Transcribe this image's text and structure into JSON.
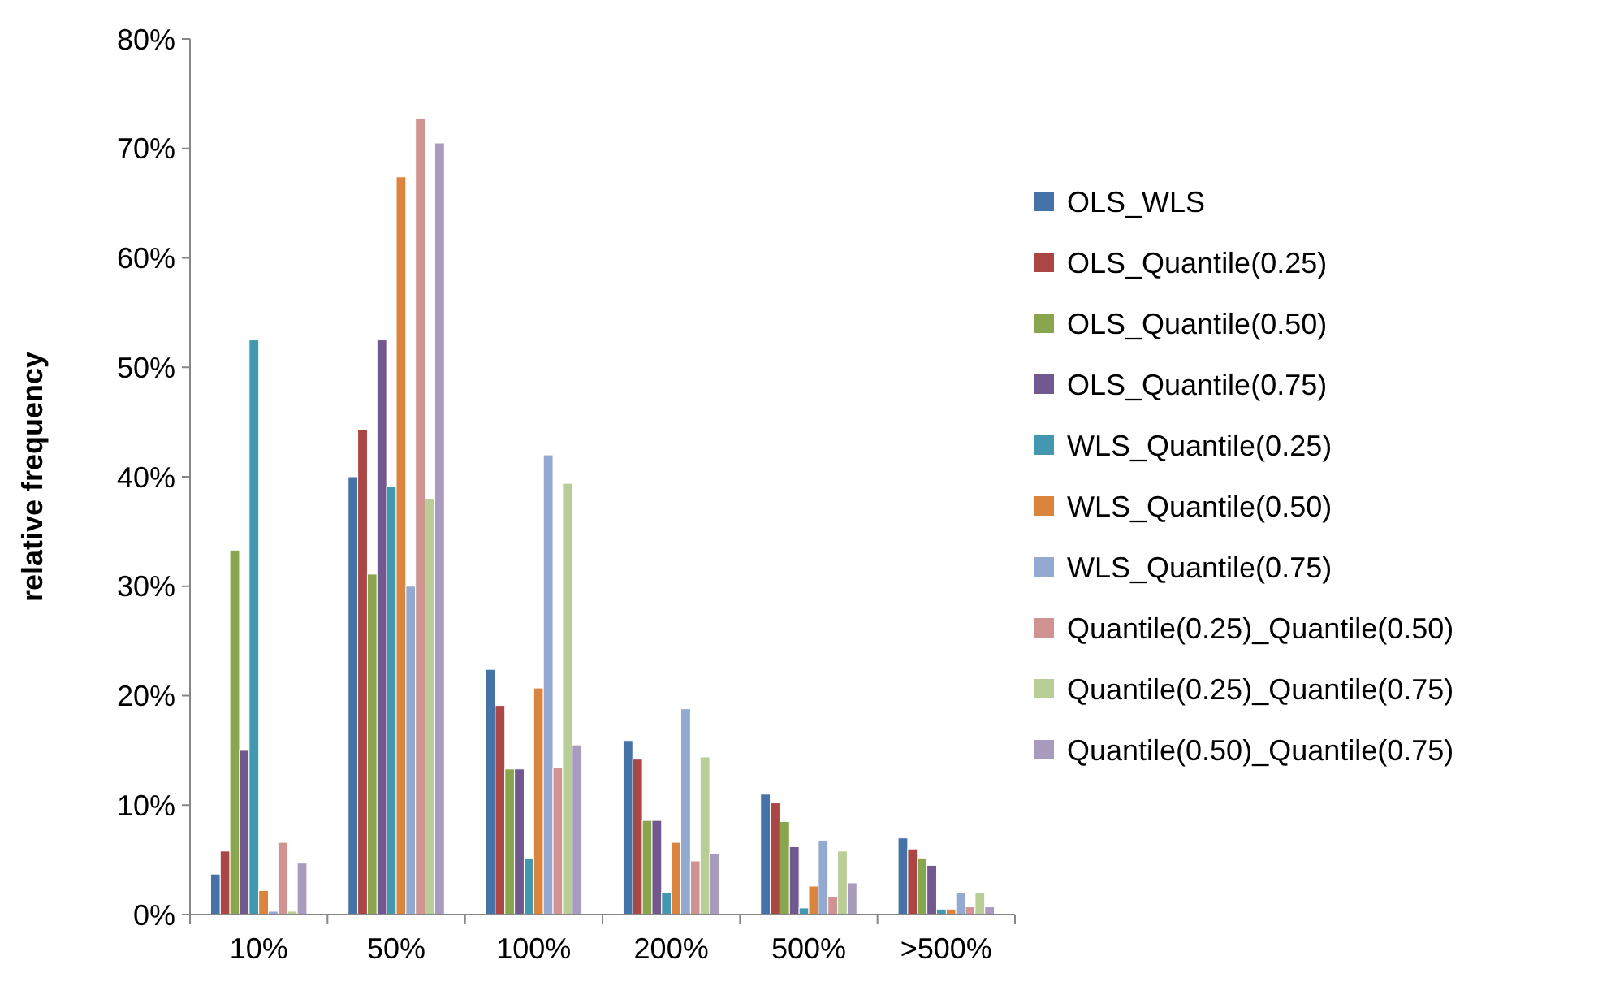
{
  "chart_data": {
    "type": "bar",
    "ylabel": "relative frequency",
    "categories": [
      "10%",
      "50%",
      "100%",
      "200%",
      "500%",
      ">500%"
    ],
    "ylim": [
      0,
      80
    ],
    "yticks": [
      {
        "value": 0,
        "label": "0%"
      },
      {
        "value": 10,
        "label": "10%"
      },
      {
        "value": 20,
        "label": "20%"
      },
      {
        "value": 30,
        "label": "30%"
      },
      {
        "value": 40,
        "label": "40%"
      },
      {
        "value": 50,
        "label": "50%"
      },
      {
        "value": 60,
        "label": "60%"
      },
      {
        "value": 70,
        "label": "70%"
      },
      {
        "value": 80,
        "label": "80%"
      }
    ],
    "grid": false,
    "legend": "right",
    "series": [
      {
        "name": "OLS_WLS",
        "color": "#4572a7",
        "values": [
          3.7,
          40,
          22.4,
          15.9,
          11,
          7
        ]
      },
      {
        "name": "OLS_Quantile(0.25)",
        "color": "#aa4643",
        "values": [
          5.8,
          44.3,
          19.1,
          14.2,
          10.2,
          6
        ]
      },
      {
        "name": "OLS_Quantile(0.50)",
        "color": "#89a54e",
        "values": [
          33.3,
          31.1,
          13.3,
          8.6,
          8.5,
          5.1
        ]
      },
      {
        "name": "OLS_Quantile(0.75)",
        "color": "#71588f",
        "values": [
          15,
          52.5,
          13.3,
          8.6,
          6.2,
          4.5
        ]
      },
      {
        "name": "WLS_Quantile(0.25)",
        "color": "#4198af",
        "values": [
          52.5,
          39.1,
          5.1,
          2,
          0.6,
          0.5
        ]
      },
      {
        "name": "WLS_Quantile(0.50)",
        "color": "#db843d",
        "values": [
          2.2,
          67.4,
          20.7,
          6.6,
          2.6,
          0.5
        ]
      },
      {
        "name": "WLS_Quantile(0.75)",
        "color": "#93a9cf",
        "values": [
          0.3,
          30,
          42,
          18.8,
          6.8,
          2
        ]
      },
      {
        "name": "Quantile(0.25)_Quantile(0.50)",
        "color": "#d19392",
        "values": [
          6.6,
          72.7,
          13.4,
          4.9,
          1.6,
          0.7
        ]
      },
      {
        "name": "Quantile(0.25)_Quantile(0.75)",
        "color": "#b9cd96",
        "values": [
          0.3,
          38,
          39.4,
          14.4,
          5.8,
          2
        ]
      },
      {
        "name": "Quantile(0.50)_Quantile(0.75)",
        "color": "#a99bbd",
        "values": [
          4.7,
          70.5,
          15.5,
          5.6,
          2.9,
          0.7
        ]
      }
    ]
  }
}
